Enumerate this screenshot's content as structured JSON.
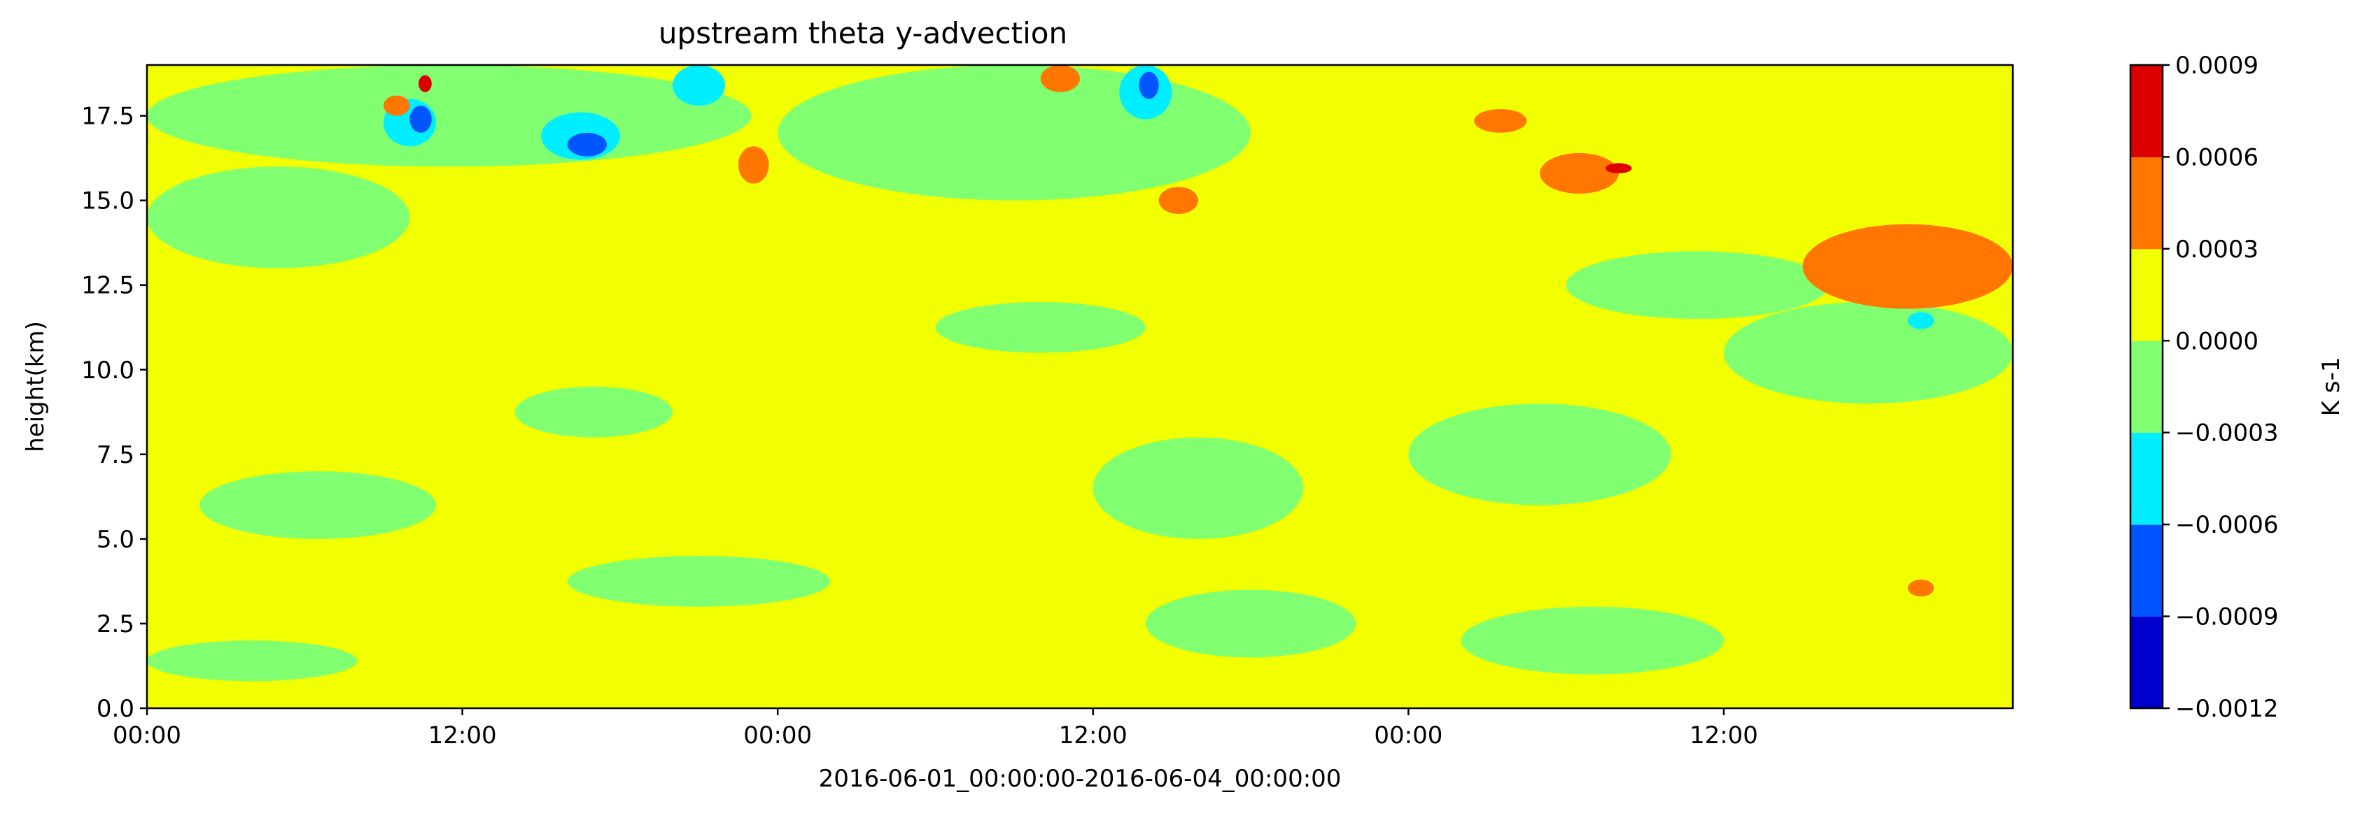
{
  "chart_data": {
    "type": "heatmap",
    "title": "upstream theta y-advection",
    "xlabel": "2016-06-01_00:00:00-2016-06-04_00:00:00",
    "ylabel": "height(km)",
    "xlim": [
      "2016-06-01T00:00",
      "2016-06-03T23:00"
    ],
    "ylim": [
      0,
      19
    ],
    "x_ticks": [
      {
        "at": "2016-06-01T00:00",
        "label": "00:00"
      },
      {
        "at": "2016-06-01T12:00",
        "label": "12:00"
      },
      {
        "at": "2016-06-02T00:00",
        "label": "00:00"
      },
      {
        "at": "2016-06-02T12:00",
        "label": "12:00"
      },
      {
        "at": "2016-06-03T00:00",
        "label": "00:00"
      },
      {
        "at": "2016-06-03T12:00",
        "label": "12:00"
      }
    ],
    "y_ticks": [
      {
        "value": 0.0,
        "label": "0.0"
      },
      {
        "value": 2.5,
        "label": "2.5"
      },
      {
        "value": 5.0,
        "label": "5.0"
      },
      {
        "value": 7.5,
        "label": "7.5"
      },
      {
        "value": 10.0,
        "label": "10.0"
      },
      {
        "value": 12.5,
        "label": "12.5"
      },
      {
        "value": 15.0,
        "label": "15.0"
      },
      {
        "value": 17.5,
        "label": "17.5"
      }
    ],
    "colorbar": {
      "label": "K s-1",
      "levels": [
        -0.0012,
        -0.0009,
        -0.0006,
        -0.0003,
        0.0,
        0.0003,
        0.0006,
        0.0009
      ],
      "level_labels": [
        "−0.0012",
        "−0.0009",
        "−0.0006",
        "−0.0003",
        "0.0000",
        "0.0003",
        "0.0006",
        "0.0009"
      ],
      "colors": [
        "#0000cc",
        "#0055ff",
        "#00eeff",
        "#80ff70",
        "#f2ff00",
        "#ff7700",
        "#dd0000"
      ]
    },
    "background_band": 4,
    "regions": [
      {
        "band": 3,
        "t": [
          "2016-06-01T00:00",
          "2016-06-01T23:00"
        ],
        "h": [
          16.0,
          19.0
        ]
      },
      {
        "band": 3,
        "t": [
          "2016-06-01T00:00",
          "2016-06-01T10:00"
        ],
        "h": [
          13.0,
          16.0
        ]
      },
      {
        "band": 3,
        "t": [
          "2016-06-02T00:00",
          "2016-06-02T18:00"
        ],
        "h": [
          15.0,
          19.0
        ]
      },
      {
        "band": 3,
        "t": [
          "2016-06-03T12:00",
          "2016-06-03T23:00"
        ],
        "h": [
          9.0,
          12.0
        ]
      },
      {
        "band": 3,
        "t": [
          "2016-06-01T02:00",
          "2016-06-01T11:00"
        ],
        "h": [
          5.0,
          7.0
        ]
      },
      {
        "band": 3,
        "t": [
          "2016-06-01T16:00",
          "2016-06-02T02:00"
        ],
        "h": [
          3.0,
          4.5
        ]
      },
      {
        "band": 3,
        "t": [
          "2016-06-02T12:00",
          "2016-06-02T20:00"
        ],
        "h": [
          5.0,
          8.0
        ]
      },
      {
        "band": 3,
        "t": [
          "2016-06-03T00:00",
          "2016-06-03T10:00"
        ],
        "h": [
          6.0,
          9.0
        ]
      },
      {
        "band": 3,
        "t": [
          "2016-06-02T06:00",
          "2016-06-02T14:00"
        ],
        "h": [
          10.5,
          12.0
        ]
      },
      {
        "band": 3,
        "t": [
          "2016-06-03T02:00",
          "2016-06-03T12:00"
        ],
        "h": [
          1.0,
          3.0
        ]
      },
      {
        "band": 3,
        "t": [
          "2016-06-01T00:00",
          "2016-06-01T08:00"
        ],
        "h": [
          0.8,
          2.0
        ]
      },
      {
        "band": 3,
        "t": [
          "2016-06-02T14:00",
          "2016-06-02T22:00"
        ],
        "h": [
          1.5,
          3.5
        ]
      },
      {
        "band": 3,
        "t": [
          "2016-06-01T14:00",
          "2016-06-01T20:00"
        ],
        "h": [
          8.0,
          9.5
        ]
      },
      {
        "band": 3,
        "t": [
          "2016-06-03T06:00",
          "2016-06-03T16:00"
        ],
        "h": [
          11.5,
          13.5
        ]
      },
      {
        "band": 2,
        "t": [
          "2016-06-01T15:00",
          "2016-06-01T18:00"
        ],
        "h": [
          16.2,
          17.6
        ]
      },
      {
        "band": 2,
        "t": [
          "2016-06-01T09:00",
          "2016-06-01T11:00"
        ],
        "h": [
          16.6,
          18.0
        ]
      },
      {
        "band": 2,
        "t": [
          "2016-06-01T20:00",
          "2016-06-01T22:00"
        ],
        "h": [
          17.8,
          19.0
        ]
      },
      {
        "band": 2,
        "t": [
          "2016-06-02T13:00",
          "2016-06-02T15:00"
        ],
        "h": [
          17.4,
          19.0
        ]
      },
      {
        "band": 2,
        "t": [
          "2016-06-03T19:00",
          "2016-06-03T20:00"
        ],
        "h": [
          11.2,
          11.7
        ]
      },
      {
        "band": 1,
        "t": [
          "2016-06-01T16:00",
          "2016-06-01T17:30"
        ],
        "h": [
          16.3,
          17.0
        ]
      },
      {
        "band": 1,
        "t": [
          "2016-06-01T10:00",
          "2016-06-01T10:50"
        ],
        "h": [
          17.0,
          17.8
        ]
      },
      {
        "band": 1,
        "t": [
          "2016-06-02T13:45",
          "2016-06-02T14:30"
        ],
        "h": [
          18.0,
          18.8
        ]
      },
      {
        "band": 5,
        "t": [
          "2016-06-03T15:00",
          "2016-06-03T23:00"
        ],
        "h": [
          11.8,
          14.3
        ]
      },
      {
        "band": 5,
        "t": [
          "2016-06-03T05:00",
          "2016-06-03T08:00"
        ],
        "h": [
          15.2,
          16.4
        ]
      },
      {
        "band": 5,
        "t": [
          "2016-06-02T10:00",
          "2016-06-02T11:30"
        ],
        "h": [
          18.2,
          19.0
        ]
      },
      {
        "band": 5,
        "t": [
          "2016-06-01T22:30",
          "2016-06-01T23:40"
        ],
        "h": [
          15.5,
          16.6
        ]
      },
      {
        "band": 5,
        "t": [
          "2016-06-02T14:30",
          "2016-06-02T16:00"
        ],
        "h": [
          14.6,
          15.4
        ]
      },
      {
        "band": 5,
        "t": [
          "2016-06-03T02:30",
          "2016-06-03T04:30"
        ],
        "h": [
          17.0,
          17.7
        ]
      },
      {
        "band": 5,
        "t": [
          "2016-06-01T09:00",
          "2016-06-01T10:00"
        ],
        "h": [
          17.5,
          18.1
        ]
      },
      {
        "band": 5,
        "t": [
          "2016-06-03T19:00",
          "2016-06-03T20:00"
        ],
        "h": [
          3.3,
          3.8
        ]
      },
      {
        "band": 6,
        "t": [
          "2016-06-03T07:30",
          "2016-06-03T08:30"
        ],
        "h": [
          15.8,
          16.1
        ]
      },
      {
        "band": 6,
        "t": [
          "2016-06-01T10:20",
          "2016-06-01T10:50"
        ],
        "h": [
          18.2,
          18.7
        ]
      }
    ]
  }
}
